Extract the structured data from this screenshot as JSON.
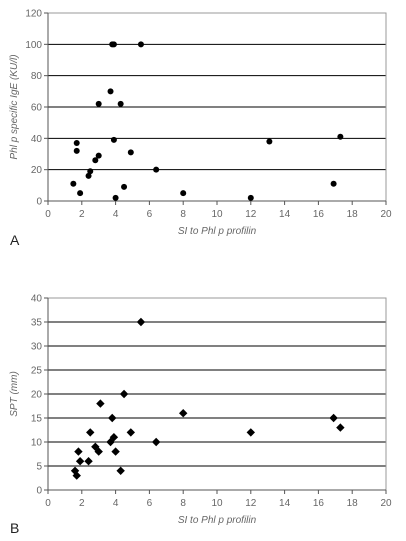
{
  "chart_data": [
    {
      "type": "scatter",
      "panel_label": "A",
      "xlabel": "SI to Phl p profilin",
      "ylabel": "Phl p specific IgE (KU/l)",
      "xlim": [
        0,
        20
      ],
      "ylim": [
        0,
        120
      ],
      "xticks": [
        0,
        2,
        4,
        6,
        8,
        10,
        12,
        14,
        16,
        18,
        20
      ],
      "yticks": [
        0,
        20,
        40,
        60,
        80,
        100,
        120
      ],
      "grid": "horizontal",
      "marker": "circle",
      "color": "#000000",
      "points": [
        {
          "x": 1.5,
          "y": 11
        },
        {
          "x": 1.7,
          "y": 37
        },
        {
          "x": 1.7,
          "y": 32
        },
        {
          "x": 1.9,
          "y": 5
        },
        {
          "x": 2.4,
          "y": 16
        },
        {
          "x": 2.5,
          "y": 19
        },
        {
          "x": 2.8,
          "y": 26
        },
        {
          "x": 3.0,
          "y": 29
        },
        {
          "x": 3.0,
          "y": 62
        },
        {
          "x": 3.7,
          "y": 70
        },
        {
          "x": 3.8,
          "y": 100
        },
        {
          "x": 3.9,
          "y": 100
        },
        {
          "x": 3.9,
          "y": 39
        },
        {
          "x": 4.0,
          "y": 2
        },
        {
          "x": 4.3,
          "y": 62
        },
        {
          "x": 4.5,
          "y": 9
        },
        {
          "x": 4.9,
          "y": 31
        },
        {
          "x": 5.5,
          "y": 100
        },
        {
          "x": 6.4,
          "y": 20
        },
        {
          "x": 8.0,
          "y": 5
        },
        {
          "x": 12.0,
          "y": 2
        },
        {
          "x": 13.1,
          "y": 38
        },
        {
          "x": 16.9,
          "y": 11
        },
        {
          "x": 17.3,
          "y": 41
        }
      ]
    },
    {
      "type": "scatter",
      "panel_label": "B",
      "xlabel": "SI to Phl p profilin",
      "ylabel": "SPT (mm)",
      "xlim": [
        0,
        20
      ],
      "ylim": [
        0,
        40
      ],
      "xticks": [
        0,
        2,
        4,
        6,
        8,
        10,
        12,
        14,
        16,
        18,
        20
      ],
      "yticks": [
        0,
        5,
        10,
        15,
        20,
        25,
        30,
        35,
        40
      ],
      "grid": "horizontal",
      "marker": "diamond",
      "color": "#000000",
      "points": [
        {
          "x": 1.6,
          "y": 4
        },
        {
          "x": 1.7,
          "y": 3
        },
        {
          "x": 1.8,
          "y": 8
        },
        {
          "x": 1.9,
          "y": 6
        },
        {
          "x": 2.4,
          "y": 6
        },
        {
          "x": 2.5,
          "y": 12
        },
        {
          "x": 2.8,
          "y": 9
        },
        {
          "x": 3.0,
          "y": 8
        },
        {
          "x": 3.1,
          "y": 18
        },
        {
          "x": 3.7,
          "y": 10
        },
        {
          "x": 3.8,
          "y": 15
        },
        {
          "x": 3.9,
          "y": 11
        },
        {
          "x": 4.0,
          "y": 8
        },
        {
          "x": 4.3,
          "y": 4
        },
        {
          "x": 4.5,
          "y": 20
        },
        {
          "x": 4.9,
          "y": 12
        },
        {
          "x": 5.5,
          "y": 35
        },
        {
          "x": 6.4,
          "y": 10
        },
        {
          "x": 8.0,
          "y": 16
        },
        {
          "x": 12.0,
          "y": 12
        },
        {
          "x": 16.9,
          "y": 15
        },
        {
          "x": 17.3,
          "y": 13
        }
      ]
    }
  ]
}
